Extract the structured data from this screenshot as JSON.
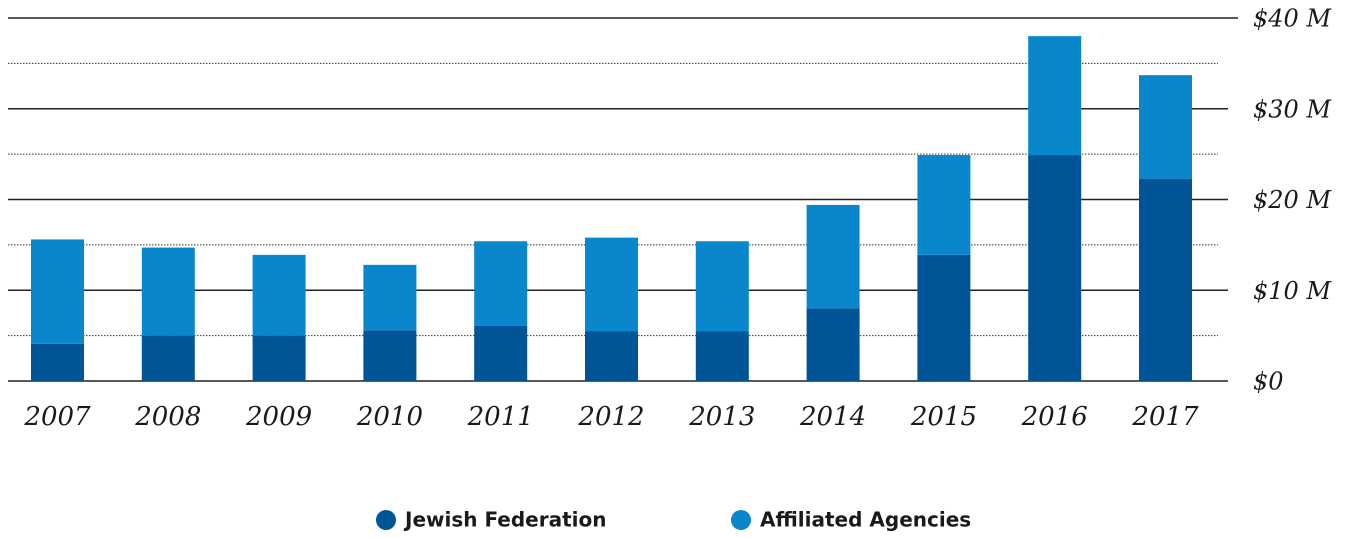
{
  "chart_data": {
    "type": "stacked_bar",
    "categories": [
      "2007",
      "2008",
      "2009",
      "2010",
      "2011",
      "2012",
      "2013",
      "2014",
      "2015",
      "2016",
      "2017"
    ],
    "series": [
      {
        "name": "Jewish Federation",
        "color": "#005596",
        "values": [
          4.1,
          5.0,
          5.0,
          5.6,
          6.1,
          5.5,
          5.5,
          8.0,
          13.9,
          24.9,
          22.3
        ]
      },
      {
        "name": "Affiliated Agencies",
        "color": "#0a87cc",
        "values": [
          11.5,
          9.7,
          8.9,
          7.2,
          9.3,
          10.3,
          9.9,
          11.4,
          11.0,
          13.1,
          11.4
        ]
      }
    ],
    "ylim": [
      0,
      40
    ],
    "yticks": [
      {
        "value": 0,
        "label": "$0"
      },
      {
        "value": 10,
        "label": "$10 M"
      },
      {
        "value": 20,
        "label": "$20 M"
      },
      {
        "value": 30,
        "label": "$30 M"
      },
      {
        "value": 40,
        "label": "$40 M"
      }
    ],
    "ygrid_minor": [
      5,
      15,
      25,
      35
    ],
    "grid": true
  }
}
